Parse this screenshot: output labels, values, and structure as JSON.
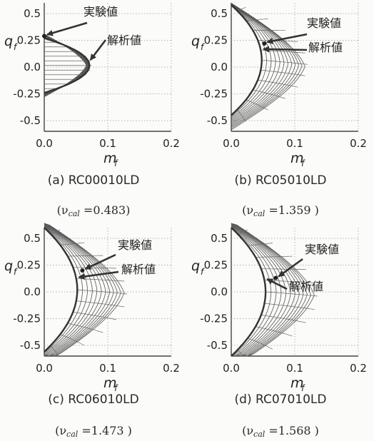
{
  "chart_data": [
    {
      "type": "line",
      "id": "a",
      "caption": "(a) RC00010LD",
      "nu_prefix": "(ν",
      "nu_sub": "cal",
      "nu_value": " =0.483)",
      "ylabel": "q",
      "ylabel_sub": "f",
      "xlabel": "m",
      "xlabel_sub": "f",
      "xlim": [
        0,
        0.2
      ],
      "ylim": [
        -0.6,
        0.6
      ],
      "x_ticks": [
        0.0,
        0.1,
        0.2
      ],
      "x_tick_labels": [
        "0.0",
        "0.1",
        "0.2"
      ],
      "y_ticks": [
        0.5,
        0.25,
        0.0,
        -0.25,
        -0.5
      ],
      "y_tick_labels": [
        "0.5",
        "0.25",
        "0.0",
        "-0.25",
        "-0.5"
      ],
      "experimental_label": "実験値",
      "analytical_label": "解析値",
      "experimental_point": {
        "m": 0.0,
        "q": 0.29
      },
      "envelope": {
        "m_max": 0.071,
        "q_max": 0.27,
        "q_min": -0.24
      },
      "grid": "dotted"
    },
    {
      "type": "line",
      "id": "b",
      "caption": "(b) RC05010LD",
      "nu_prefix": "(ν",
      "nu_sub": "cal",
      "nu_value": " =1.359 )",
      "ylabel": "q",
      "ylabel_sub": "f",
      "xlabel": "m",
      "xlabel_sub": "f",
      "xlim": [
        0,
        0.2
      ],
      "ylim": [
        -0.6,
        0.6
      ],
      "x_ticks": [
        0.0,
        0.1,
        0.2
      ],
      "x_tick_labels": [
        "0.0",
        "0.1",
        "0.2"
      ],
      "y_ticks": [
        0.5,
        0.25,
        0.0,
        -0.25,
        -0.5
      ],
      "y_tick_labels": [
        "0.5",
        "0.25",
        "0.0",
        "-0.25",
        "-0.5"
      ],
      "experimental_label": "実験値",
      "analytical_label": "解析値",
      "experimental_point": {
        "m": 0.052,
        "q": 0.22
      },
      "envelope": {
        "m_max": 0.048,
        "q_max": 0.58,
        "q_min": -0.45
      },
      "grid": "dotted"
    },
    {
      "type": "line",
      "id": "c",
      "caption": "(c) RC06010LD",
      "nu_prefix": "(ν",
      "nu_sub": "cal",
      "nu_value": " =1.473 )",
      "ylabel": "q",
      "ylabel_sub": "f",
      "xlabel": "m",
      "xlabel_sub": "f",
      "xlim": [
        0,
        0.2
      ],
      "ylim": [
        -0.6,
        0.6
      ],
      "x_ticks": [
        0.0,
        0.1,
        0.2
      ],
      "x_tick_labels": [
        "0.0",
        "0.1",
        "0.2"
      ],
      "y_ticks": [
        0.5,
        0.25,
        0.0,
        -0.25,
        -0.5
      ],
      "y_tick_labels": [
        "0.5",
        "0.25",
        "0.0",
        "-0.25",
        "-0.5"
      ],
      "experimental_label": "実験値",
      "analytical_label": "解析値",
      "experimental_point": {
        "m": 0.06,
        "q": 0.2
      },
      "envelope": {
        "m_max": 0.052,
        "q_max": 0.6,
        "q_min": -0.56
      },
      "grid": "dotted"
    },
    {
      "type": "line",
      "id": "d",
      "caption": "(d) RC07010LD",
      "nu_prefix": "(ν",
      "nu_sub": "cal",
      "nu_value": " =1.568 )",
      "ylabel": "q",
      "ylabel_sub": "f",
      "xlabel": "m",
      "xlabel_sub": "f",
      "xlim": [
        0,
        0.2
      ],
      "ylim": [
        -0.6,
        0.6
      ],
      "x_ticks": [
        0.0,
        0.1,
        0.2
      ],
      "x_tick_labels": [
        "0.0",
        "0.1",
        "0.2"
      ],
      "y_ticks": [
        0.5,
        0.25,
        0.0,
        -0.25,
        -0.5
      ],
      "y_tick_labels": [
        "0.5",
        "0.25",
        "0.0",
        "-0.25",
        "-0.5"
      ],
      "experimental_label": "実験値",
      "analytical_label": "解析値",
      "experimental_point": {
        "m": 0.07,
        "q": 0.13
      },
      "envelope": {
        "m_max": 0.054,
        "q_max": 0.6,
        "q_min": -0.6
      },
      "grid": "dotted"
    }
  ]
}
